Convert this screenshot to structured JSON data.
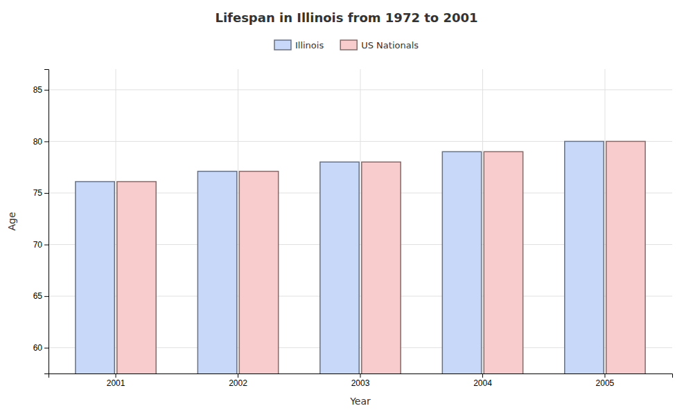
{
  "chart_data": {
    "type": "bar",
    "title": "Lifespan in Illinois from 1972 to 2001",
    "xlabel": "Year",
    "ylabel": "Age",
    "categories": [
      "2001",
      "2002",
      "2003",
      "2004",
      "2005"
    ],
    "series": [
      {
        "name": "Illinois",
        "color": "#c8d8f8",
        "values": [
          76.1,
          77.1,
          78.0,
          79.0,
          80.0
        ]
      },
      {
        "name": "US Nationals",
        "color": "#f8cccc",
        "values": [
          76.1,
          77.1,
          78.0,
          79.0,
          80.0
        ]
      }
    ],
    "ylim": [
      57.5,
      87
    ],
    "yticks": [
      60,
      65,
      70,
      75,
      80,
      85
    ],
    "grid": true,
    "legend": "top"
  }
}
